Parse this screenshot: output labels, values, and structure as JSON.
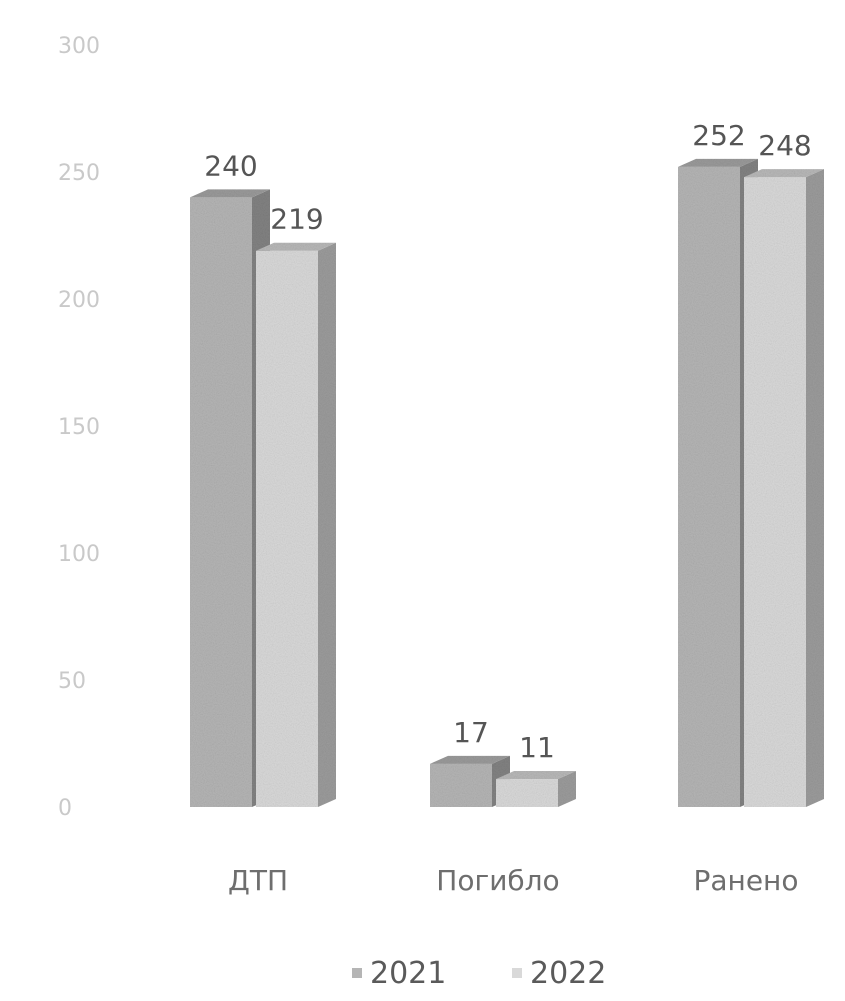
{
  "chart_data": {
    "type": "bar",
    "categories": [
      "ДТП",
      "Погибло",
      "Ранено"
    ],
    "series": [
      {
        "name": "2021",
        "values": [
          240,
          17,
          252
        ],
        "color": "#b5b5b5"
      },
      {
        "name": "2022",
        "values": [
          219,
          11,
          248
        ],
        "color": "#d9d9d9"
      }
    ],
    "data_labels": [
      [
        "240",
        "17",
        "252"
      ],
      [
        "219",
        "11",
        "248"
      ]
    ],
    "y_ticks": [
      "0",
      "50",
      "100",
      "150",
      "200",
      "250",
      "300"
    ],
    "ylim": [
      0,
      300
    ],
    "grid": false,
    "legend_position": "bottom",
    "style": "3d-column",
    "title": "",
    "xlabel": "",
    "ylabel": ""
  }
}
